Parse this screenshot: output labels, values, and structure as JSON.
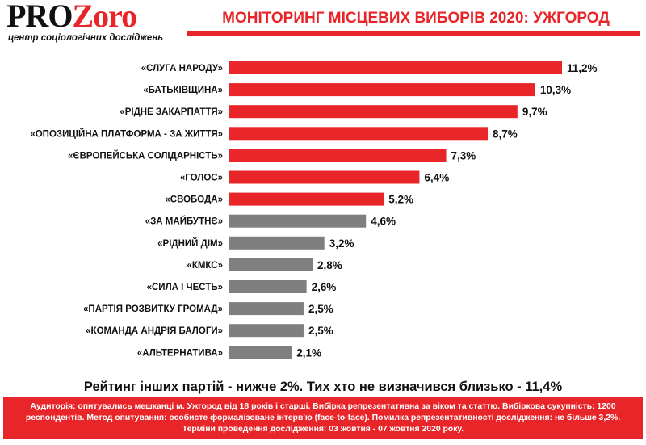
{
  "logo": {
    "part1": "PRO",
    "part2": "Zoro",
    "subtitle": "центр соціологічних досліджень"
  },
  "header": {
    "title": "МОНІТОРИНГ МІСЦЕВИХ ВИБОРІВ 2020: УЖГОРОД"
  },
  "colors": {
    "accent": "#e8262a",
    "gray_bar": "#7f7f7f"
  },
  "chart_data": {
    "type": "bar",
    "orientation": "horizontal",
    "categories": [
      "«СЛУГА НАРОДУ»",
      "«БАТЬКІВЩИНА»",
      "«РІДНЕ ЗАКАРПАТТЯ»",
      "«ОПОЗИЦІЙНА ПЛАТФОРМА - ЗА ЖИТТЯ»",
      "«ЄВРОПЕЙСЬКА СОЛІДАРНІСТЬ»",
      "«ГОЛОС»",
      "«СВОБОДА»",
      "«ЗА МАЙБУТНЄ»",
      "«РІДНИЙ ДІМ»",
      "«КМКС»",
      "«СИЛА І ЧЕСТЬ»",
      "«ПАРТІЯ РОЗВИТКУ ГРОМАД»",
      "«КОМАНДА АНДРІЯ БАЛОГИ»",
      "«АЛЬТЕРНАТИВА»"
    ],
    "values": [
      11.2,
      10.3,
      9.7,
      8.7,
      7.3,
      6.4,
      5.2,
      4.6,
      3.2,
      2.8,
      2.6,
      2.5,
      2.5,
      2.1
    ],
    "value_labels": [
      "11,2%",
      "10,3%",
      "9,7%",
      "8,7%",
      "7,3%",
      "6,4%",
      "5,2%",
      "4,6%",
      "3,2%",
      "2,8%",
      "2,6%",
      "2,5%",
      "2,5%",
      "2,1%"
    ],
    "bar_colors": [
      "#e8262a",
      "#e8262a",
      "#e8262a",
      "#e8262a",
      "#e8262a",
      "#e8262a",
      "#e8262a",
      "#7f7f7f",
      "#7f7f7f",
      "#7f7f7f",
      "#7f7f7f",
      "#7f7f7f",
      "#7f7f7f",
      "#7f7f7f"
    ],
    "xlim": [
      0,
      11.2
    ],
    "grid": false,
    "legend": "none"
  },
  "note": "Рейтинг інших партій - нижче 2%. Тих хто не визначився близько - 11,4%",
  "footer": {
    "text": "Аудиторія: опитувались мешканці м. Ужгород від 18 років і старші. Вибірка репрезентативна за віком та статтю. Вибіркова сукупність: 1200 респондентів. Метод опитування: особисте формалізоване інтерв'ю (face-to-face). Помилка репрезентативності дослідження: не більше 3,2%. Терміни проведення дослідження: 03 жовтня - 07 жовтня 2020 року."
  }
}
